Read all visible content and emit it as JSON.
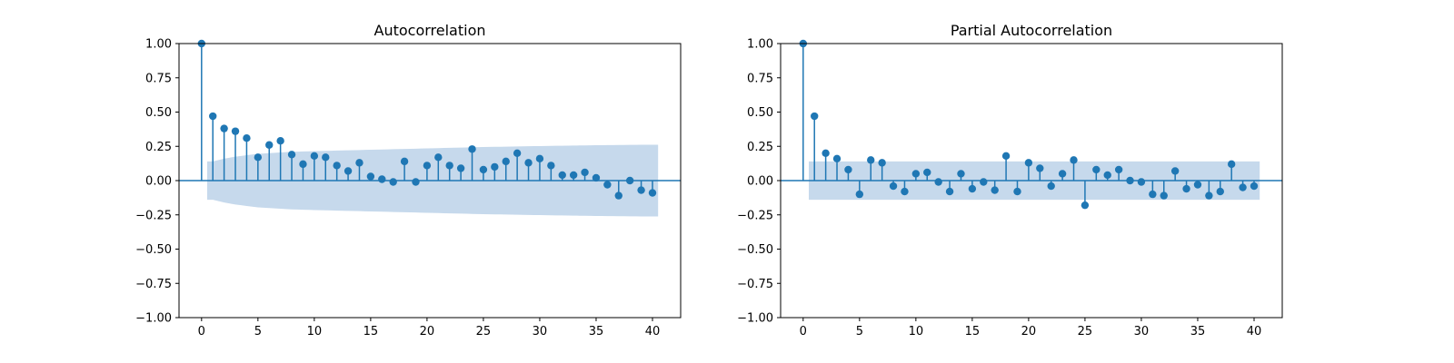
{
  "chart_data": [
    {
      "type": "stem",
      "title": "Autocorrelation",
      "xlabel": "",
      "ylabel": "",
      "xlim": [
        -2,
        42.5
      ],
      "ylim": [
        -1.0,
        1.0
      ],
      "xticks": [
        0,
        5,
        10,
        15,
        20,
        25,
        30,
        35,
        40
      ],
      "xtick_labels": [
        "0",
        "5",
        "10",
        "15",
        "20",
        "25",
        "30",
        "35",
        "40"
      ],
      "yticks": [
        1.0,
        0.75,
        0.5,
        0.25,
        0.0,
        -0.25,
        -0.5,
        -0.75,
        -1.0
      ],
      "ytick_labels": [
        "1.00",
        "0.75",
        "0.50",
        "0.25",
        "0.00",
        "−0.25",
        "−0.50",
        "−0.75",
        "−1.00"
      ],
      "x": [
        0,
        1,
        2,
        3,
        4,
        5,
        6,
        7,
        8,
        9,
        10,
        11,
        12,
        13,
        14,
        15,
        16,
        17,
        18,
        19,
        20,
        21,
        22,
        23,
        24,
        25,
        26,
        27,
        28,
        29,
        30,
        31,
        32,
        33,
        34,
        35,
        36,
        37,
        38,
        39,
        40
      ],
      "values": [
        1.0,
        0.47,
        0.38,
        0.36,
        0.31,
        0.17,
        0.26,
        0.29,
        0.19,
        0.12,
        0.18,
        0.17,
        0.11,
        0.07,
        0.13,
        0.03,
        0.01,
        -0.01,
        0.14,
        -0.01,
        0.11,
        0.17,
        0.11,
        0.09,
        0.23,
        0.08,
        0.1,
        0.14,
        0.2,
        0.13,
        0.16,
        0.11,
        0.04,
        0.04,
        0.06,
        0.02,
        -0.03,
        -0.11,
        0.0,
        -0.07,
        -0.09
      ],
      "confidence_band": {
        "x_start": 0.5,
        "x_end": 40.5,
        "lags": [
          1,
          2,
          3,
          4,
          5,
          6,
          8,
          10,
          15,
          20,
          25,
          30,
          35,
          40
        ],
        "upper": [
          0.14,
          0.16,
          0.175,
          0.185,
          0.195,
          0.2,
          0.21,
          0.215,
          0.225,
          0.235,
          0.245,
          0.252,
          0.258,
          0.262
        ]
      },
      "colors": {
        "stem": "#1f77b4",
        "band": "#c6d9ec",
        "axis": "#000000"
      }
    },
    {
      "type": "stem",
      "title": "Partial Autocorrelation",
      "xlabel": "",
      "ylabel": "",
      "xlim": [
        -2,
        42.5
      ],
      "ylim": [
        -1.0,
        1.0
      ],
      "xticks": [
        0,
        5,
        10,
        15,
        20,
        25,
        30,
        35,
        40
      ],
      "xtick_labels": [
        "0",
        "5",
        "10",
        "15",
        "20",
        "25",
        "30",
        "35",
        "40"
      ],
      "yticks": [
        1.0,
        0.75,
        0.5,
        0.25,
        0.0,
        -0.25,
        -0.5,
        -0.75,
        -1.0
      ],
      "ytick_labels": [
        "1.00",
        "0.75",
        "0.50",
        "0.25",
        "0.00",
        "−0.25",
        "−0.50",
        "−0.75",
        "−1.00"
      ],
      "x": [
        0,
        1,
        2,
        3,
        4,
        5,
        6,
        7,
        8,
        9,
        10,
        11,
        12,
        13,
        14,
        15,
        16,
        17,
        18,
        19,
        20,
        21,
        22,
        23,
        24,
        25,
        26,
        27,
        28,
        29,
        30,
        31,
        32,
        33,
        34,
        35,
        36,
        37,
        38,
        39,
        40
      ],
      "values": [
        1.0,
        0.47,
        0.2,
        0.16,
        0.08,
        -0.1,
        0.15,
        0.13,
        -0.04,
        -0.08,
        0.05,
        0.06,
        -0.01,
        -0.08,
        0.05,
        -0.06,
        -0.01,
        -0.07,
        0.18,
        -0.08,
        0.13,
        0.09,
        -0.04,
        0.05,
        0.15,
        -0.18,
        0.08,
        0.04,
        0.08,
        0.0,
        -0.01,
        -0.1,
        -0.11,
        0.07,
        -0.06,
        -0.03,
        -0.11,
        -0.08,
        0.12,
        -0.05,
        -0.04
      ],
      "confidence_band": {
        "x_start": 0.5,
        "x_end": 40.5,
        "lags": [
          1,
          40
        ],
        "upper": [
          0.14,
          0.14
        ]
      },
      "colors": {
        "stem": "#1f77b4",
        "band": "#c6d9ec",
        "axis": "#000000"
      }
    }
  ]
}
